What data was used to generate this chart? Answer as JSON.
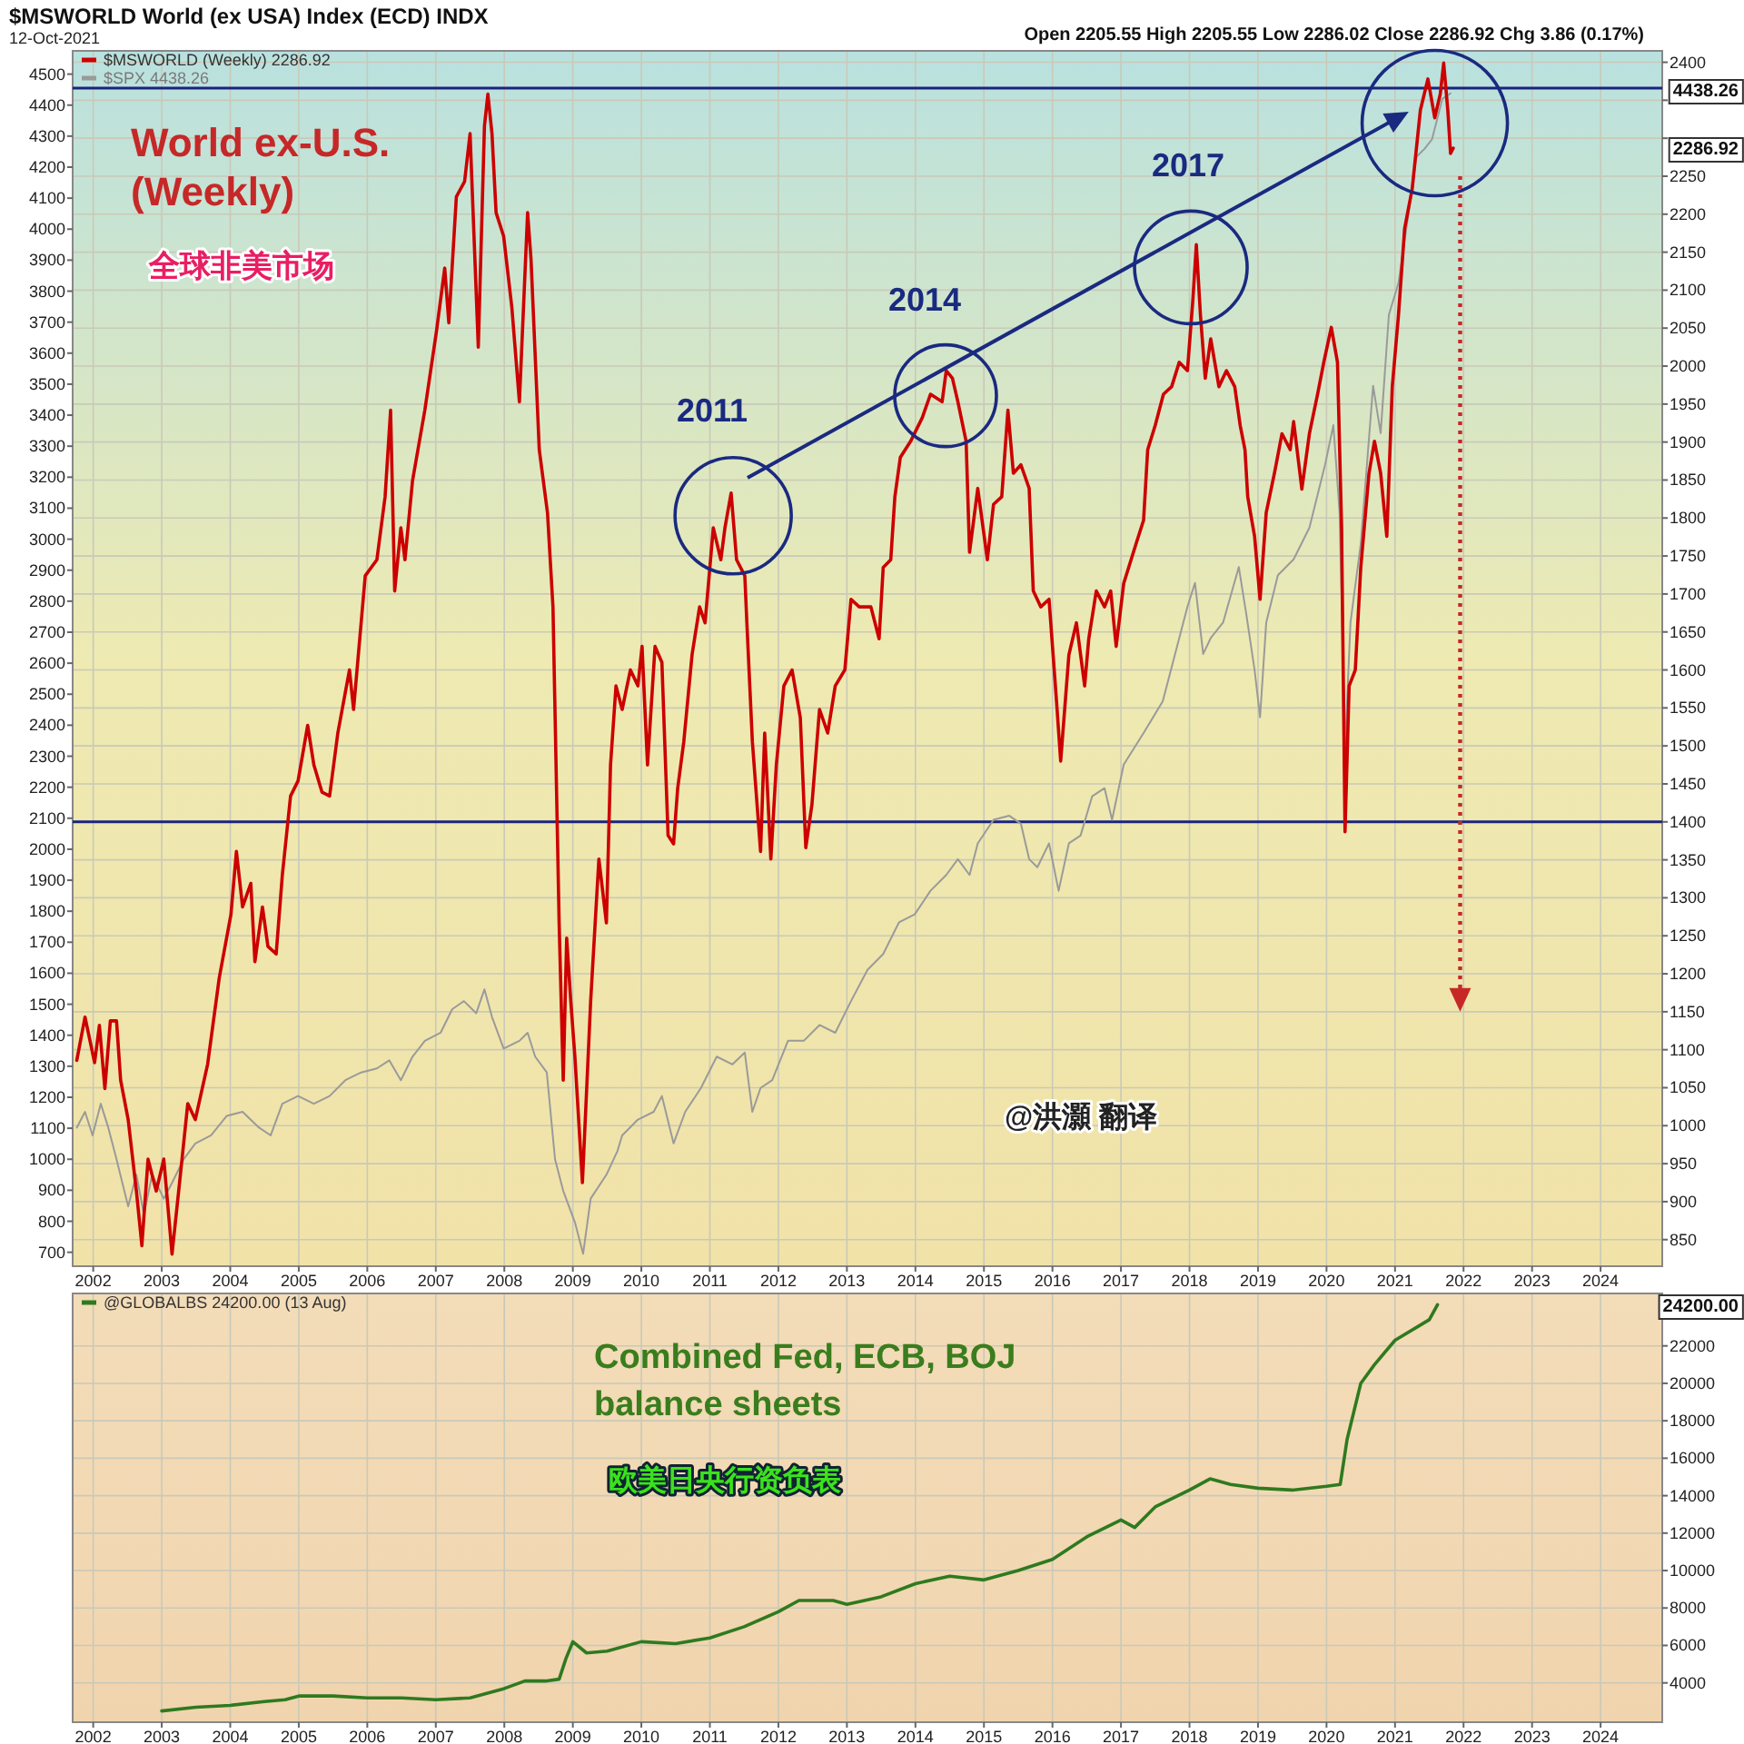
{
  "chart_data": [
    {
      "type": "line",
      "title": "$MSWORLD World (ex USA) Index (ECD) INDX",
      "subtitle": "12-Oct-2021",
      "xlim": [
        2001.7,
        2024.9
      ],
      "xticks": [
        2002,
        2003,
        2004,
        2005,
        2006,
        2007,
        2008,
        2009,
        2010,
        2011,
        2012,
        2013,
        2014,
        2015,
        2016,
        2017,
        2018,
        2019,
        2020,
        2021,
        2022,
        2023,
        2024
      ],
      "ylim": [
        655,
        4575
      ],
      "yticks": [
        700,
        800,
        900,
        1000,
        1100,
        1200,
        1300,
        1400,
        1500,
        1600,
        1700,
        1800,
        1900,
        2000,
        2100,
        2200,
        2300,
        2400,
        2500,
        2600,
        2700,
        2800,
        2900,
        3000,
        3100,
        3200,
        3300,
        3400,
        3500,
        3600,
        3700,
        3800,
        3900,
        4000,
        4100,
        4200,
        4300,
        4400,
        4500
      ],
      "y2lim": [
        815,
        2415
      ],
      "y2ticks": [
        850,
        900,
        950,
        1000,
        1050,
        1100,
        1150,
        1200,
        1250,
        1300,
        1350,
        1400,
        1450,
        1500,
        1550,
        1600,
        1650,
        1700,
        1750,
        1800,
        1850,
        1900,
        1950,
        2000,
        2050,
        2100,
        2150,
        2200,
        2250,
        {
          "value": 2300,
          "label": null
        },
        {
          "value": 2350,
          "label": null
        },
        2400
      ],
      "grid": true,
      "legend": "top left",
      "series": [
        {
          "name": "$MSWORLD (Weekly) 2286.92",
          "color": "#cc0000",
          "axis": "y2",
          "x": [
            2001.76,
            2001.88,
            2002.02,
            2002.09,
            2002.17,
            2002.25,
            2002.34,
            2002.4,
            2002.51,
            2002.63,
            2002.71,
            2002.8,
            2002.92,
            2003.03,
            2003.15,
            2003.26,
            2003.38,
            2003.49,
            2003.67,
            2003.84,
            2004.01,
            2004.09,
            2004.18,
            2004.3,
            2004.36,
            2004.47,
            2004.55,
            2004.67,
            2004.76,
            2004.88,
            2004.99,
            2005.13,
            2005.22,
            2005.34,
            2005.45,
            2005.57,
            2005.74,
            2005.8,
            2005.97,
            2006.14,
            2006.26,
            2006.34,
            2006.4,
            2006.49,
            2006.55,
            2006.66,
            2006.84,
            2007.01,
            2007.13,
            2007.19,
            2007.3,
            2007.42,
            2007.5,
            2007.62,
            2007.71,
            2007.76,
            2007.82,
            2007.88,
            2007.99,
            2008.11,
            2008.22,
            2008.34,
            2008.39,
            2008.51,
            2008.63,
            2008.71,
            2008.8,
            2008.86,
            2008.91,
            2008.97,
            2009.03,
            2009.14,
            2009.26,
            2009.38,
            2009.49,
            2009.55,
            2009.63,
            2009.72,
            2009.84,
            2009.95,
            2010.01,
            2010.09,
            2010.2,
            2010.3,
            2010.39,
            2010.47,
            2010.53,
            2010.62,
            2010.74,
            2010.85,
            2010.93,
            2011.05,
            2011.16,
            2011.22,
            2011.31,
            2011.39,
            2011.51,
            2011.54,
            2011.62,
            2011.74,
            2011.8,
            2011.89,
            2011.97,
            2012.08,
            2012.2,
            2012.32,
            2012.4,
            2012.49,
            2012.6,
            2012.72,
            2012.83,
            2012.97,
            2013.06,
            2013.18,
            2013.35,
            2013.47,
            2013.53,
            2013.64,
            2013.7,
            2013.78,
            2013.93,
            2014.1,
            2014.22,
            2014.39,
            2014.45,
            2014.54,
            2014.62,
            2014.74,
            2014.79,
            2014.91,
            2015.05,
            2015.14,
            2015.26,
            2015.35,
            2015.43,
            2015.54,
            2015.66,
            2015.72,
            2015.83,
            2015.95,
            2016.06,
            2016.12,
            2016.24,
            2016.35,
            2016.47,
            2016.53,
            2016.64,
            2016.76,
            2016.85,
            2016.93,
            2017.04,
            2017.22,
            2017.33,
            2017.39,
            2017.5,
            2017.62,
            2017.74,
            2017.85,
            2017.97,
            2018.05,
            2018.1,
            2018.16,
            2018.23,
            2018.31,
            2018.43,
            2018.54,
            2018.66,
            2018.74,
            2018.81,
            2018.85,
            2018.95,
            2019.03,
            2019.12,
            2019.24,
            2019.35,
            2019.47,
            2019.52,
            2019.64,
            2019.75,
            2019.87,
            2019.96,
            2020.07,
            2020.16,
            2020.22,
            2020.27,
            2020.33,
            2020.42,
            2020.5,
            2020.62,
            2020.7,
            2020.79,
            2020.88,
            2020.96,
            2021.05,
            2021.14,
            2021.25,
            2021.37,
            2021.48,
            2021.58,
            2021.66,
            2021.71,
            2021.77,
            2021.81,
            2021.85
          ],
          "values": [
            1086,
            1143,
            1083,
            1132,
            1049,
            1138,
            1138,
            1060,
            1008,
            914,
            842,
            956,
            914,
            956,
            831,
            925,
            1029,
            1008,
            1081,
            1195,
            1278,
            1361,
            1288,
            1319,
            1216,
            1288,
            1236,
            1226,
            1330,
            1434,
            1454,
            1527,
            1475,
            1439,
            1434,
            1517,
            1600,
            1548,
            1724,
            1745,
            1828,
            1942,
            1704,
            1787,
            1745,
            1849,
            1942,
            2046,
            2129,
            2057,
            2223,
            2243,
            2306,
            2025,
            2316,
            2358,
            2306,
            2202,
            2171,
            2077,
            1953,
            2202,
            2140,
            1890,
            1807,
            1683,
            1267,
            1060,
            1247,
            1164,
            1091,
            925,
            1164,
            1351,
            1267,
            1475,
            1579,
            1548,
            1600,
            1579,
            1631,
            1475,
            1631,
            1610,
            1382,
            1371,
            1444,
            1506,
            1620,
            1683,
            1662,
            1787,
            1745,
            1787,
            1833,
            1745,
            1724,
            1662,
            1506,
            1361,
            1517,
            1351,
            1475,
            1579,
            1600,
            1537,
            1366,
            1423,
            1548,
            1517,
            1579,
            1600,
            1693,
            1683,
            1683,
            1641,
            1735,
            1745,
            1828,
            1880,
            1901,
            1932,
            1963,
            1953,
            1994,
            1984,
            1953,
            1901,
            1755,
            1839,
            1745,
            1818,
            1828,
            1942,
            1859,
            1870,
            1839,
            1704,
            1683,
            1693,
            1558,
            1480,
            1620,
            1662,
            1579,
            1641,
            1704,
            1683,
            1704,
            1631,
            1714,
            1766,
            1797,
            1890,
            1922,
            1963,
            1973,
            2005,
            1994,
            2088,
            2160,
            2067,
            1984,
            2036,
            1973,
            1994,
            1973,
            1922,
            1890,
            1828,
            1776,
            1693,
            1807,
            1859,
            1911,
            1890,
            1927,
            1838,
            1911,
            1963,
            2005,
            2051,
            2005,
            1787,
            1387,
            1579,
            1600,
            1735,
            1859,
            1901,
            1859,
            1776,
            1973,
            2067,
            2181,
            2233,
            2337,
            2378,
            2327,
            2358,
            2399,
            2337,
            2280,
            2287
          ]
        },
        {
          "name": "$SPX 4438.26",
          "color": "#9a9a9a",
          "axis": "y",
          "x": [
            2001.76,
            2001.88,
            2001.99,
            2002.11,
            2002.22,
            2002.34,
            2002.51,
            2002.63,
            2002.74,
            2002.86,
            2003.03,
            2003.15,
            2003.32,
            2003.49,
            2003.72,
            2003.95,
            2004.18,
            2004.42,
            2004.59,
            2004.76,
            2004.99,
            2005.22,
            2005.45,
            2005.68,
            2005.91,
            2006.14,
            2006.32,
            2006.49,
            2006.66,
            2006.84,
            2007.07,
            2007.24,
            2007.41,
            2007.59,
            2007.71,
            2007.82,
            2007.99,
            2008.22,
            2008.34,
            2008.45,
            2008.62,
            2008.74,
            2008.86,
            2009.03,
            2009.15,
            2009.26,
            2009.49,
            2009.65,
            2009.72,
            2009.95,
            2010.18,
            2010.3,
            2010.47,
            2010.64,
            2010.87,
            2011.1,
            2011.33,
            2011.51,
            2011.62,
            2011.74,
            2011.91,
            2012.14,
            2012.37,
            2012.6,
            2012.83,
            2013.06,
            2013.3,
            2013.53,
            2013.76,
            2013.99,
            2014.22,
            2014.45,
            2014.62,
            2014.79,
            2014.91,
            2015.14,
            2015.37,
            2015.54,
            2015.66,
            2015.78,
            2015.95,
            2016.09,
            2016.24,
            2016.41,
            2016.58,
            2016.76,
            2016.87,
            2017.04,
            2017.33,
            2017.61,
            2017.79,
            2017.97,
            2018.08,
            2018.2,
            2018.31,
            2018.49,
            2018.72,
            2018.83,
            2018.95,
            2019.03,
            2019.12,
            2019.29,
            2019.52,
            2019.75,
            2019.98,
            2020.1,
            2020.19,
            2020.27,
            2020.35,
            2020.5,
            2020.68,
            2020.79,
            2020.91,
            2021.05,
            2021.2,
            2021.31,
            2021.43,
            2021.54,
            2021.69,
            2021.81
          ],
          "values": [
            1102,
            1153,
            1077,
            1179,
            1102,
            1000,
            848,
            950,
            822,
            950,
            873,
            924,
            1000,
            1051,
            1077,
            1140,
            1153,
            1102,
            1077,
            1179,
            1204,
            1179,
            1204,
            1255,
            1280,
            1293,
            1319,
            1255,
            1331,
            1382,
            1408,
            1484,
            1510,
            1471,
            1548,
            1459,
            1357,
            1382,
            1408,
            1331,
            1280,
            1000,
            898,
            797,
            695,
            873,
            950,
            1026,
            1077,
            1128,
            1153,
            1204,
            1051,
            1153,
            1230,
            1331,
            1306,
            1344,
            1153,
            1230,
            1255,
            1382,
            1382,
            1433,
            1408,
            1510,
            1611,
            1662,
            1764,
            1790,
            1866,
            1917,
            1968,
            1917,
            2019,
            2095,
            2108,
            2082,
            1968,
            1942,
            2019,
            1866,
            2019,
            2044,
            2171,
            2197,
            2095,
            2273,
            2375,
            2477,
            2630,
            2782,
            2859,
            2630,
            2681,
            2731,
            2910,
            2757,
            2579,
            2426,
            2731,
            2884,
            2935,
            3037,
            3241,
            3368,
            3088,
            2324,
            2731,
            2986,
            3495,
            3342,
            3724,
            3826,
            4055,
            4233,
            4259,
            4290,
            4420,
            4438
          ]
        }
      ],
      "ref_lines": [
        {
          "axis": "y2",
          "value": 2366,
          "color": "#1a237e"
        },
        {
          "axis": "y2",
          "value": 1400,
          "color": "#1a237e"
        }
      ],
      "annotations": [
        "Open 2205.55 High 2205.55 Low 2286.02 Close 2286.92 Chg 3.86 (0.17%)",
        "World ex-U.S.\n(Weekly)",
        "全球非美市场",
        "@洪灝 翻译",
        "2011",
        "2014",
        "2017",
        "4438.26",
        "2286.92"
      ]
    },
    {
      "type": "line",
      "xlim": [
        2001.7,
        2024.9
      ],
      "xticks": [
        2002,
        2003,
        2004,
        2005,
        2006,
        2007,
        2008,
        2009,
        2010,
        2011,
        2012,
        2013,
        2014,
        2015,
        2016,
        2017,
        2018,
        2019,
        2020,
        2021,
        2022,
        2023,
        2024
      ],
      "ylim": [
        1900,
        24800
      ],
      "yticks": [
        4000,
        6000,
        8000,
        10000,
        12000,
        14000,
        16000,
        18000,
        20000,
        22000
      ],
      "grid": true,
      "legend": "top left",
      "series": [
        {
          "name": "@GLOBALBS 24200.00 (13 Aug)",
          "color": "#2f7a1f",
          "x": [
            2003.0,
            2003.5,
            2004.0,
            2004.5,
            2004.8,
            2005.0,
            2005.5,
            2006.0,
            2006.5,
            2007.0,
            2007.5,
            2008.0,
            2008.3,
            2008.6,
            2008.8,
            2008.9,
            2009.0,
            2009.2,
            2009.5,
            2010.0,
            2010.5,
            2011.0,
            2011.5,
            2012.0,
            2012.3,
            2012.8,
            2013.0,
            2013.5,
            2014.0,
            2014.5,
            2015.0,
            2015.5,
            2016.0,
            2016.5,
            2017.0,
            2017.2,
            2017.5,
            2018.0,
            2018.3,
            2018.6,
            2019.0,
            2019.5,
            2020.0,
            2020.2,
            2020.3,
            2020.5,
            2020.7,
            2021.0,
            2021.5,
            2021.62
          ],
          "values": [
            2500,
            2700,
            2800,
            3000,
            3100,
            3300,
            3300,
            3200,
            3200,
            3100,
            3200,
            3700,
            4100,
            4100,
            4200,
            5300,
            6200,
            5600,
            5700,
            6200,
            6100,
            6400,
            7000,
            7800,
            8400,
            8400,
            8200,
            8600,
            9300,
            9700,
            9500,
            10000,
            10600,
            11800,
            12700,
            12300,
            13400,
            14300,
            14900,
            14600,
            14400,
            14300,
            14500,
            14600,
            17000,
            20000,
            21000,
            22300,
            23400,
            24200
          ]
        }
      ],
      "annotations": [
        "Combined Fed, ECB, BOJ\nbalance sheets",
        "欧美日央行资负表",
        "24200.00"
      ]
    }
  ]
}
